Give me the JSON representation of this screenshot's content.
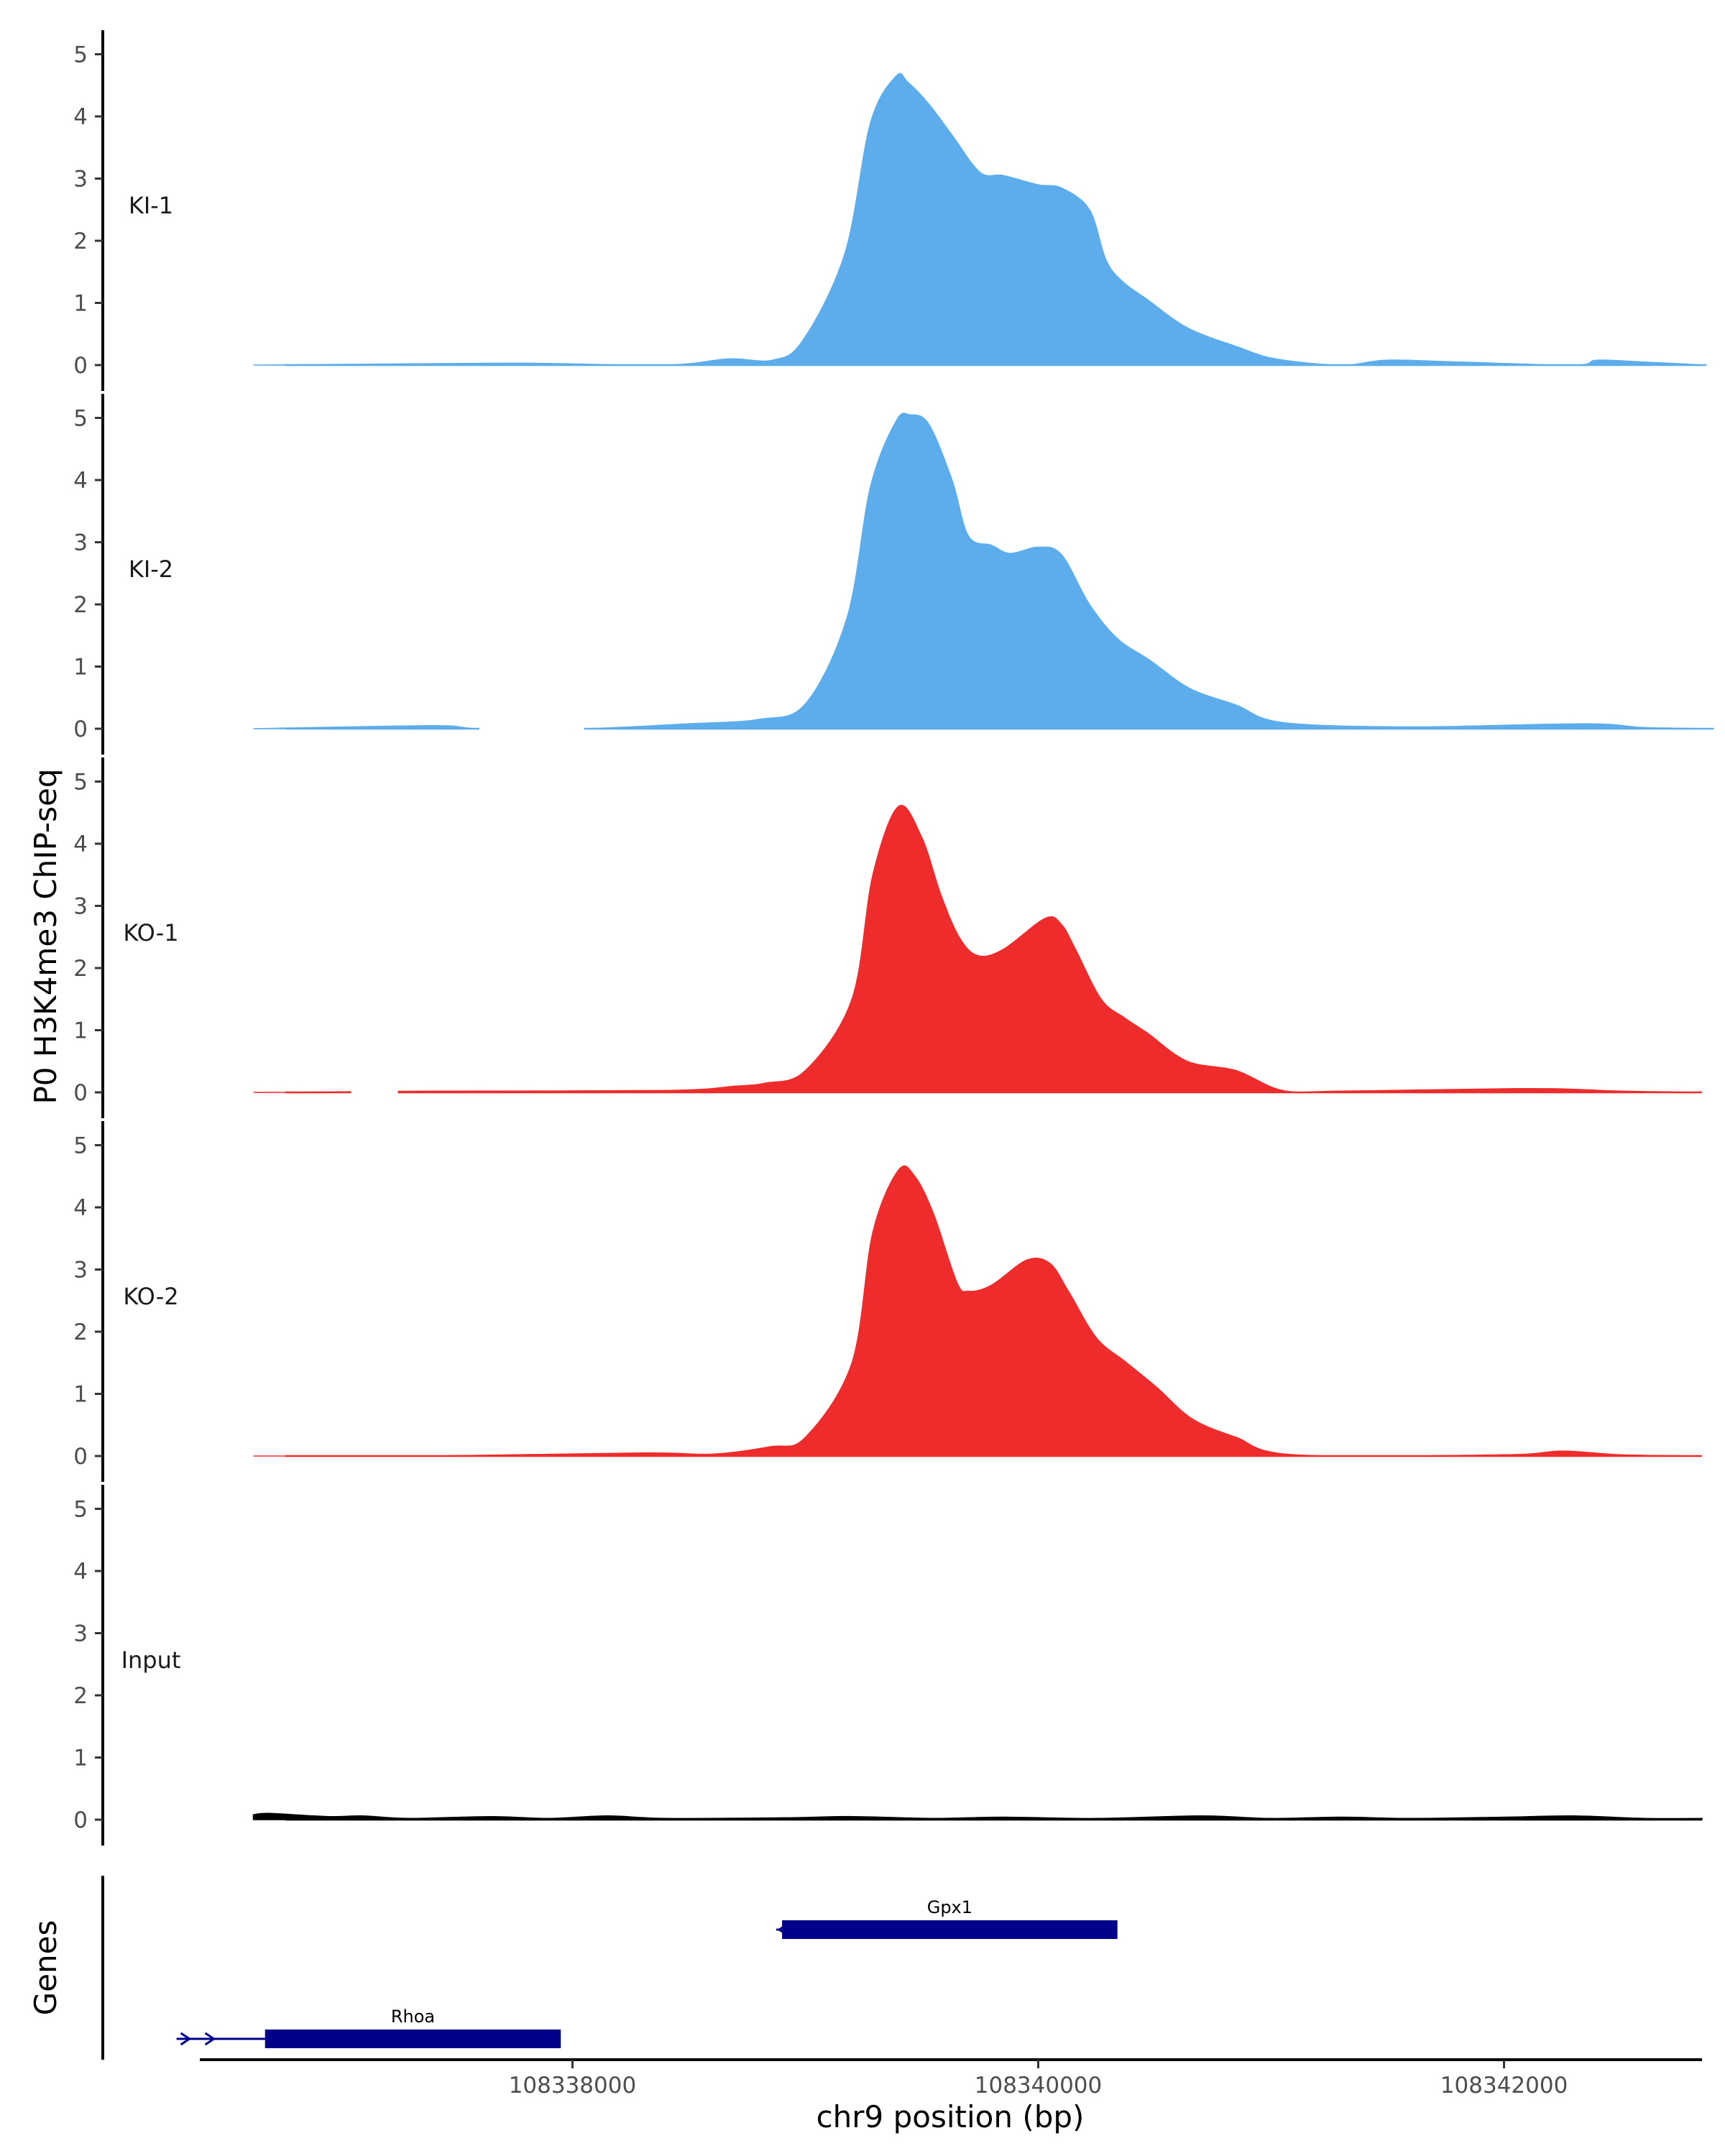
{
  "chart_data": {
    "type": "area",
    "ylabel": "P0 H3K4me3 ChIP-seq",
    "xlabel": "chr9 position (bp)",
    "genes_label": "Genes",
    "xlim": [
      108336400,
      108342850
    ],
    "ylim": [
      0,
      5.2
    ],
    "y_ticks": [
      0,
      1,
      2,
      3,
      4,
      5
    ],
    "x_ticks": [
      108338000,
      108340000,
      108342000
    ],
    "x_tick_labels": [
      "108338000",
      "108340000",
      "108342000"
    ],
    "colors": {
      "KI": "#5DADEC",
      "KO": "#EE2C2C",
      "Input": "#000000",
      "gene": "#00008B"
    },
    "tracks": [
      {
        "name": "KI-1",
        "color": "#5DADEC",
        "x": [
          108336630,
          108337300,
          108337800,
          108338400,
          108338670,
          108338860,
          108338990,
          108339170,
          108339280,
          108339390,
          108339440,
          108339530,
          108339630,
          108339750,
          108339850,
          108340000,
          108340100,
          108340220,
          108340290,
          108340360,
          108340470,
          108340640,
          108340850,
          108341020,
          108341300,
          108341500,
          108341800,
          108342300,
          108342400,
          108342600,
          108342870
        ],
        "y": [
          0,
          0.02,
          0.03,
          0,
          0.1,
          0.08,
          0.4,
          1.8,
          3.9,
          4.65,
          4.55,
          4.2,
          3.7,
          3.1,
          3.05,
          2.9,
          2.85,
          2.5,
          1.7,
          1.35,
          1.05,
          0.6,
          0.3,
          0.1,
          0,
          0.08,
          0.05,
          0,
          0.08,
          0.05,
          0
        ]
      },
      {
        "name": "KI-2",
        "color": "#5DADEC",
        "x": [
          108336630,
          108337400,
          108337600,
          108338050,
          108338500,
          108338800,
          108339000,
          108339180,
          108339280,
          108339390,
          108339450,
          108339530,
          108339630,
          108339700,
          108339800,
          108339880,
          108340000,
          108340100,
          108340220,
          108340340,
          108340480,
          108340650,
          108340850,
          108341050,
          108341600,
          108342350,
          108342600,
          108342900
        ],
        "y": [
          0,
          0.05,
          0,
          0,
          0.08,
          0.15,
          0.4,
          1.8,
          3.9,
          4.95,
          5.05,
          4.9,
          4.0,
          3.1,
          2.95,
          2.82,
          2.92,
          2.8,
          2.0,
          1.45,
          1.1,
          0.65,
          0.38,
          0.1,
          0.03,
          0.08,
          0.02,
          0
        ],
        "gap_x": [
          108337600,
          108338050
        ]
      },
      {
        "name": "KO-1",
        "color": "#EE2C2C",
        "x": [
          108336630,
          108336750,
          108337400,
          108338400,
          108338700,
          108338830,
          108339000,
          108339200,
          108339290,
          108339400,
          108339500,
          108339580,
          108339660,
          108339740,
          108339850,
          108340030,
          108340100,
          108340160,
          108340270,
          108340370,
          108340470,
          108340640,
          108340850,
          108341050,
          108341300,
          108342050,
          108342300,
          108342500,
          108342850
        ],
        "y": [
          0,
          0,
          0.02,
          0.03,
          0.1,
          0.15,
          0.35,
          1.5,
          3.5,
          4.6,
          4.1,
          3.2,
          2.5,
          2.2,
          2.3,
          2.8,
          2.7,
          2.3,
          1.5,
          1.2,
          0.95,
          0.5,
          0.35,
          0.03,
          0.02,
          0.06,
          0.05,
          0.02,
          0
        ],
        "gap_x": [
          108337050,
          108337250
        ]
      },
      {
        "name": "KO-2",
        "color": "#EE2C2C",
        "x": [
          108336630,
          108336800,
          108337400,
          108338300,
          108338600,
          108338850,
          108339000,
          108339200,
          108339290,
          108339400,
          108339470,
          108339550,
          108339650,
          108339700,
          108339800,
          108339950,
          108340050,
          108340130,
          108340250,
          108340380,
          108340510,
          108340660,
          108340850,
          108341100,
          108342000,
          108342250,
          108342500,
          108342850
        ],
        "y": [
          0,
          0,
          0,
          0.05,
          0.03,
          0.15,
          0.3,
          1.5,
          3.6,
          4.6,
          4.5,
          3.9,
          2.8,
          2.65,
          2.75,
          3.15,
          3.1,
          2.65,
          1.9,
          1.5,
          1.1,
          0.6,
          0.3,
          0.02,
          0.02,
          0.08,
          0.02,
          0
        ]
      },
      {
        "name": "Input",
        "color": "#000000",
        "x": [
          108336630,
          108336700,
          108336950,
          108337100,
          108337300,
          108337650,
          108337900,
          108338150,
          108338400,
          108338900,
          108339200,
          108339550,
          108339850,
          108340250,
          108340700,
          108341000,
          108341300,
          108341600,
          108342000,
          108342300,
          108342600,
          108342850
        ],
        "y": [
          0.08,
          0.1,
          0.05,
          0.06,
          0.02,
          0.05,
          0.02,
          0.06,
          0.02,
          0.03,
          0.05,
          0.02,
          0.04,
          0.02,
          0.06,
          0.02,
          0.04,
          0.02,
          0.04,
          0.06,
          0.02,
          0.02
        ]
      }
    ],
    "genes": [
      {
        "name": "Gpx1",
        "strand": "-",
        "start": 108338900,
        "end": 108340340,
        "row": 0
      },
      {
        "name": "Rhoa",
        "strand": "+",
        "start": 108336680,
        "end": 108337950,
        "row": 1,
        "intron_start": 108336300
      }
    ]
  }
}
